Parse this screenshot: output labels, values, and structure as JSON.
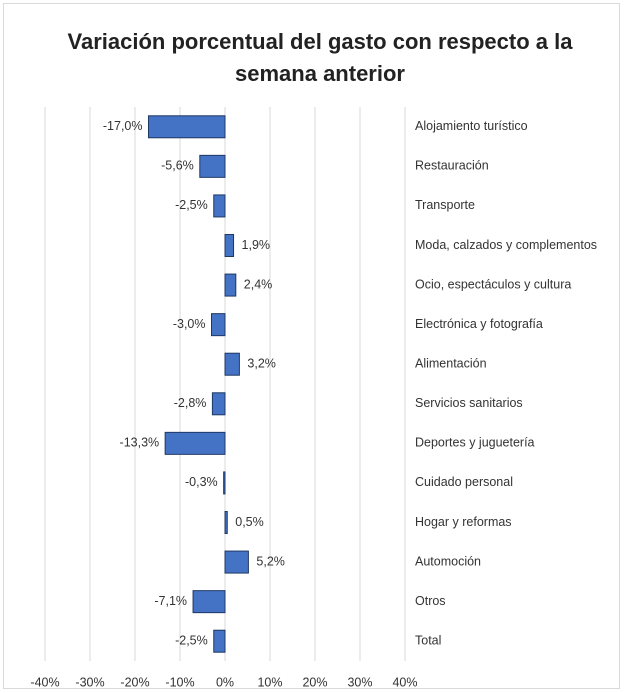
{
  "chart_data": {
    "type": "barh",
    "title": "Variación porcentual del gasto con respecto a la semana anterior",
    "categories": [
      "Alojamiento turístico",
      "Restauración",
      "Transporte",
      "Moda, calzados y complementos",
      "Ocio, espectáculos y cultura",
      "Electrónica y fotografía",
      "Alimentación",
      "Servicios sanitarios",
      "Deportes y juguetería",
      "Cuidado personal",
      "Hogar y reformas",
      "Automoción",
      "Otros",
      "Total"
    ],
    "values": [
      -17.0,
      -5.6,
      -2.5,
      1.9,
      2.4,
      -3.0,
      3.2,
      -2.8,
      -13.3,
      -0.3,
      0.5,
      5.2,
      -7.1,
      -2.5
    ],
    "value_labels": [
      "-17,0%",
      "-5,6%",
      "-2,5%",
      "1,9%",
      "2,4%",
      "-3,0%",
      "3,2%",
      "-2,8%",
      "-13,3%",
      "-0,3%",
      "0,5%",
      "5,2%",
      "-7,1%",
      "-2,5%"
    ],
    "color": "#4472c4",
    "xlim": [
      -40,
      40
    ],
    "xticks": [
      {
        "value": -40,
        "label": "-40%"
      },
      {
        "value": -30,
        "label": "-30%"
      },
      {
        "value": -20,
        "label": "-20%"
      },
      {
        "value": -10,
        "label": "-10%"
      },
      {
        "value": 0,
        "label": "0%"
      },
      {
        "value": 10,
        "label": "10%"
      },
      {
        "value": 20,
        "label": "20%"
      },
      {
        "value": 30,
        "label": "30%"
      },
      {
        "value": 40,
        "label": "40%"
      }
    ],
    "grid": true
  }
}
